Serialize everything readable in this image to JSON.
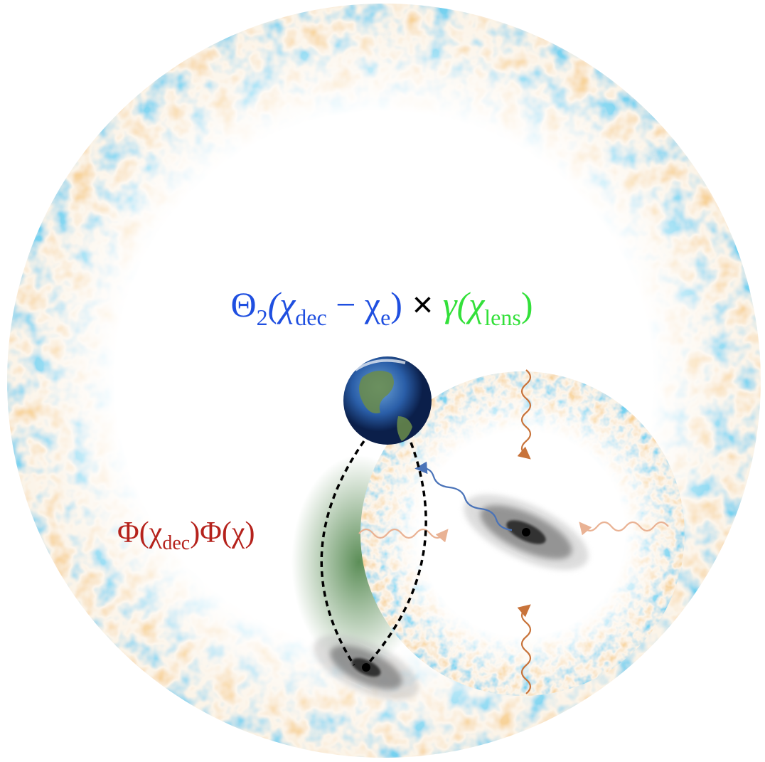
{
  "top_equation": {
    "parts": [
      "Θ",
      "2",
      "(χ",
      "dec",
      " − χ",
      "e",
      ")",
      " × ",
      "γ(χ",
      "lens",
      ")"
    ]
  },
  "side_equation": {
    "parts": [
      "Φ(χ",
      "dec",
      ")Φ(χ)"
    ]
  }
}
